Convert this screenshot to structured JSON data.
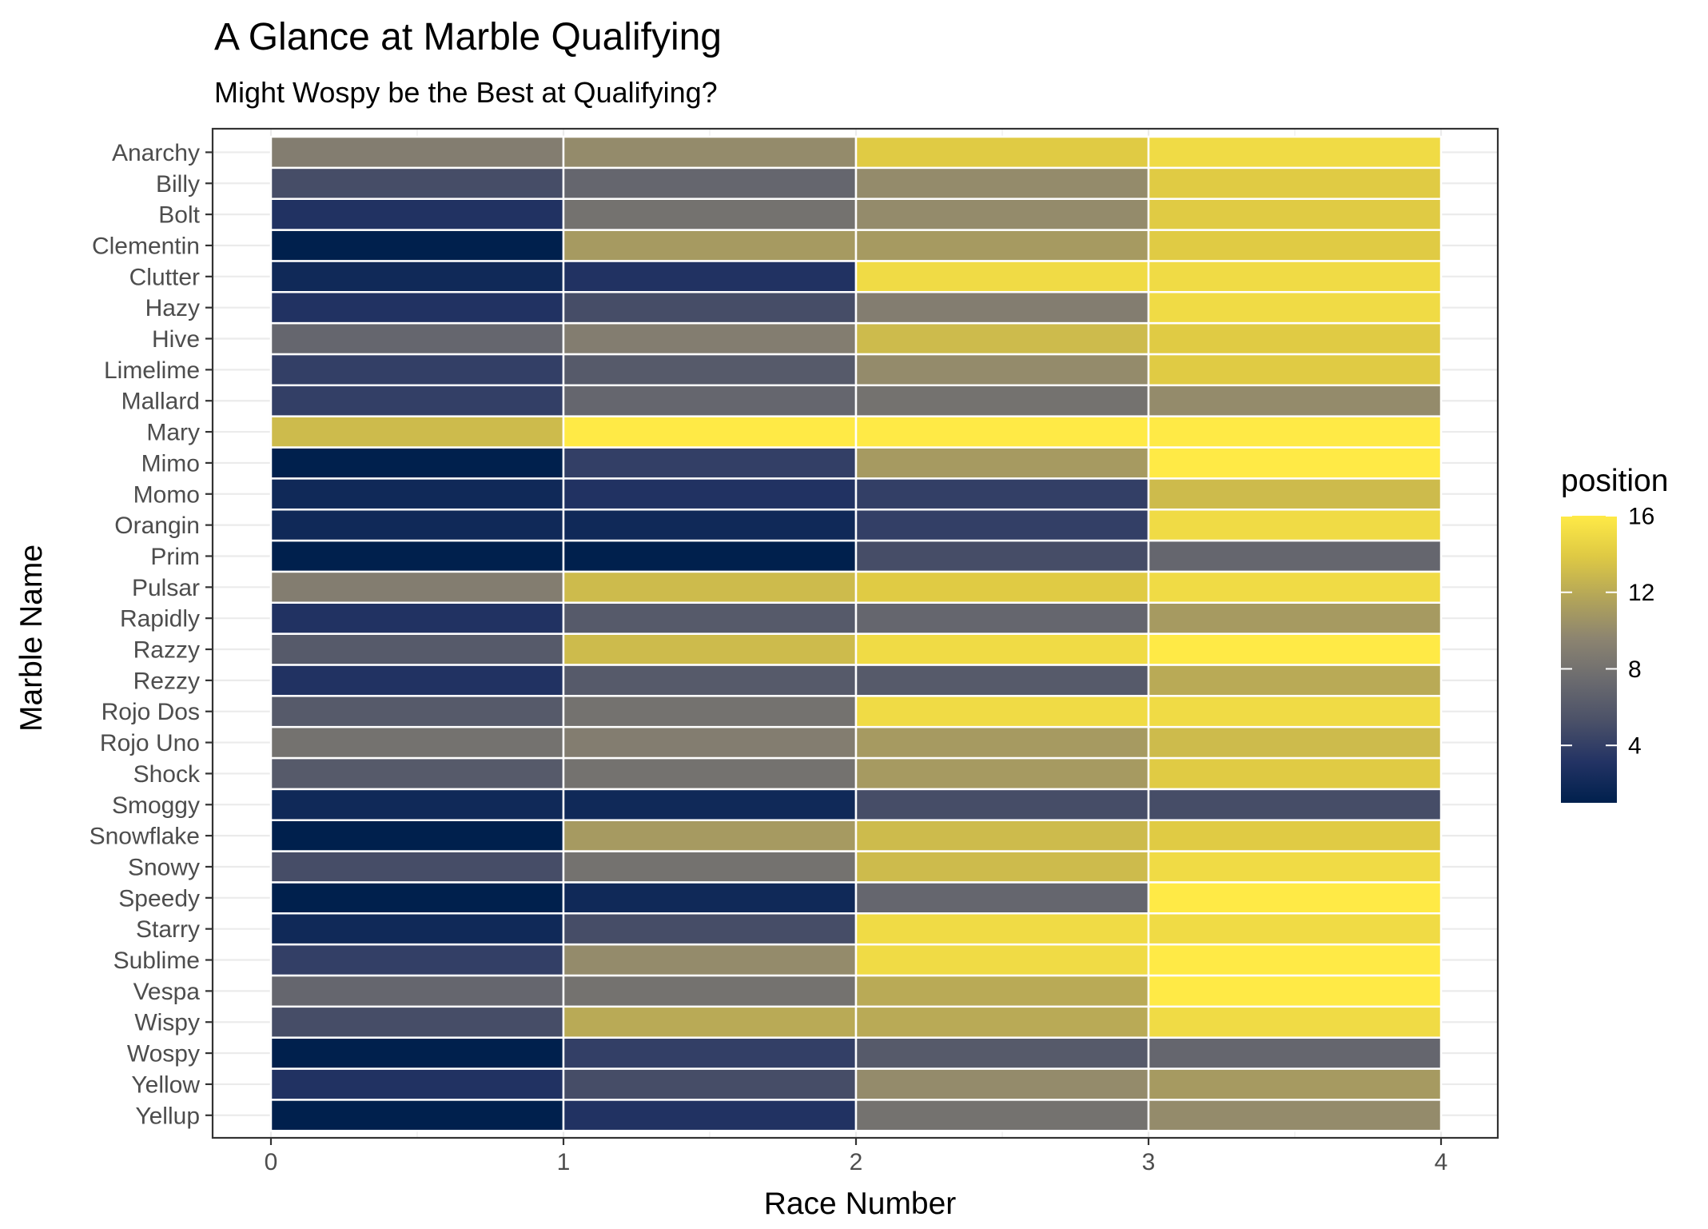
{
  "chart_data": {
    "type": "heatmap",
    "title": "A Glance at Marble Qualifying",
    "subtitle": "Might Wospy be the Best at Qualifying?",
    "xlabel": "Race Number",
    "ylabel": "Marble Name",
    "xlim": [
      0,
      4
    ],
    "x_ticks": [
      0,
      1,
      2,
      3,
      4
    ],
    "grid": true,
    "legend": {
      "title": "position",
      "placement": "right",
      "range": [
        1,
        16
      ],
      "ticks": [
        4,
        8,
        12,
        16
      ],
      "colors": [
        "#00204d",
        "#233364",
        "#4b5168",
        "#6b6b6f",
        "#8c8470",
        "#b3a559",
        "#dec944",
        "#ffea46"
      ]
    },
    "bar_width": 1,
    "marbles": [
      {
        "name": "Yellup",
        "segments": [
          1,
          3,
          8,
          10
        ]
      },
      {
        "name": "Yellow",
        "segments": [
          3,
          5,
          10,
          11
        ]
      },
      {
        "name": "Wospy",
        "segments": [
          1,
          4,
          6,
          7
        ]
      },
      {
        "name": "Wispy",
        "segments": [
          5,
          12,
          12,
          15
        ]
      },
      {
        "name": "Vespa",
        "segments": [
          7,
          8,
          12,
          16
        ]
      },
      {
        "name": "Sublime",
        "segments": [
          4,
          10,
          15,
          16
        ]
      },
      {
        "name": "Starry",
        "segments": [
          2,
          5,
          15,
          15
        ]
      },
      {
        "name": "Speedy",
        "segments": [
          1,
          2,
          7,
          16
        ]
      },
      {
        "name": "Snowy",
        "segments": [
          5,
          8,
          13,
          15
        ]
      },
      {
        "name": "Snowflake",
        "segments": [
          1,
          11,
          13,
          14
        ]
      },
      {
        "name": "Smoggy",
        "segments": [
          2,
          2,
          5,
          5
        ]
      },
      {
        "name": "Shock",
        "segments": [
          6,
          8,
          11,
          14
        ]
      },
      {
        "name": "Rojo Uno",
        "segments": [
          8,
          9,
          11,
          13
        ]
      },
      {
        "name": "Rojo Dos",
        "segments": [
          6,
          8,
          15,
          15
        ]
      },
      {
        "name": "Rezzy",
        "segments": [
          3,
          6,
          6,
          12
        ]
      },
      {
        "name": "Razzy",
        "segments": [
          6,
          13,
          15,
          16
        ]
      },
      {
        "name": "Rapidly",
        "segments": [
          3,
          6,
          7,
          11
        ]
      },
      {
        "name": "Pulsar",
        "segments": [
          9,
          13,
          14,
          15
        ]
      },
      {
        "name": "Prim",
        "segments": [
          1,
          1,
          5,
          7
        ]
      },
      {
        "name": "Orangin",
        "segments": [
          2,
          2,
          4,
          15
        ]
      },
      {
        "name": "Momo",
        "segments": [
          2,
          3,
          4,
          13
        ]
      },
      {
        "name": "Mimo",
        "segments": [
          1,
          4,
          11,
          16
        ]
      },
      {
        "name": "Mary",
        "segments": [
          13,
          16,
          16,
          16
        ]
      },
      {
        "name": "Mallard",
        "segments": [
          4,
          7,
          8,
          10
        ]
      },
      {
        "name": "Limelime",
        "segments": [
          4,
          6,
          10,
          14
        ]
      },
      {
        "name": "Hive",
        "segments": [
          7,
          9,
          13,
          14
        ]
      },
      {
        "name": "Hazy",
        "segments": [
          3,
          5,
          9,
          15
        ]
      },
      {
        "name": "Clutter",
        "segments": [
          2,
          3,
          15,
          15
        ]
      },
      {
        "name": "Clementin",
        "segments": [
          1,
          11,
          11,
          14
        ]
      },
      {
        "name": "Bolt",
        "segments": [
          3,
          8,
          10,
          14
        ]
      },
      {
        "name": "Billy",
        "segments": [
          5,
          7,
          10,
          14
        ]
      },
      {
        "name": "Anarchy",
        "segments": [
          9,
          10,
          14,
          15
        ]
      }
    ]
  }
}
